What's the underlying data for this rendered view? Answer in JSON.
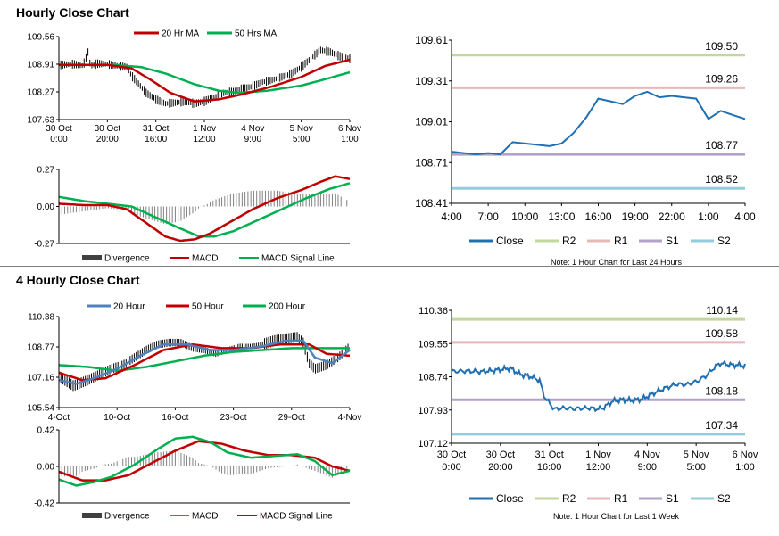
{
  "sections": {
    "hourly_title": "Hourly Close Chart",
    "four_hourly_title": "4 Hourly Close Chart"
  },
  "colors": {
    "ma20": "#c00000",
    "ma50": "#00b050",
    "ma20_4h": "#4f81bd",
    "ma50_4h": "#c00000",
    "ma200_4h": "#00b050",
    "close": "#1f6fb2",
    "r2": "#c3d69b",
    "r1": "#e6b9b8",
    "s1": "#b3a2c7",
    "s2": "#93cddd",
    "divergence": "#808080",
    "price": "#000000"
  },
  "chart_data": [
    {
      "id": "hourly_price",
      "type": "line",
      "title": "",
      "legend": [
        "20 Hr MA",
        "50 Hrs MA"
      ],
      "ylim": [
        107.63,
        109.56
      ],
      "yticks": [
        "109.56",
        "108.91",
        "108.27",
        "107.63"
      ],
      "xticks": [
        {
          "d": "30 Oct",
          "t": "0:00"
        },
        {
          "d": "30 Oct",
          "t": "20:00"
        },
        {
          "d": "31 Oct",
          "t": "16:00"
        },
        {
          "d": "1 Nov",
          "t": "12:00"
        },
        {
          "d": "4 Nov",
          "t": "9:00"
        },
        {
          "d": "5 Nov",
          "t": "5:00"
        },
        {
          "d": "6 Nov",
          "t": "1:00"
        }
      ],
      "x_range": [
        0,
        120
      ],
      "price_anchors": [
        [
          0,
          108.9
        ],
        [
          6,
          108.92
        ],
        [
          10,
          108.88
        ],
        [
          12,
          109.2
        ],
        [
          13,
          108.88
        ],
        [
          16,
          108.93
        ],
        [
          20,
          108.92
        ],
        [
          24,
          108.88
        ],
        [
          28,
          108.85
        ],
        [
          30,
          108.65
        ],
        [
          33,
          108.45
        ],
        [
          36,
          108.25
        ],
        [
          40,
          108.1
        ],
        [
          44,
          108.0
        ],
        [
          48,
          108.02
        ],
        [
          52,
          108.05
        ],
        [
          56,
          108.0
        ],
        [
          60,
          108.05
        ],
        [
          64,
          108.15
        ],
        [
          68,
          108.25
        ],
        [
          72,
          108.28
        ],
        [
          76,
          108.35
        ],
        [
          80,
          108.4
        ],
        [
          84,
          108.5
        ],
        [
          88,
          108.55
        ],
        [
          92,
          108.62
        ],
        [
          96,
          108.7
        ],
        [
          100,
          108.85
        ],
        [
          104,
          109.05
        ],
        [
          108,
          109.25
        ],
        [
          112,
          109.2
        ],
        [
          116,
          109.1
        ],
        [
          120,
          109.05
        ]
      ],
      "series": [
        {
          "name": "20 Hr MA",
          "anchors": [
            [
              0,
              108.9
            ],
            [
              20,
              108.9
            ],
            [
              30,
              108.82
            ],
            [
              38,
              108.55
            ],
            [
              46,
              108.25
            ],
            [
              56,
              108.05
            ],
            [
              66,
              108.1
            ],
            [
              76,
              108.22
            ],
            [
              88,
              108.4
            ],
            [
              100,
              108.62
            ],
            [
              110,
              108.88
            ],
            [
              120,
              109.02
            ]
          ]
        },
        {
          "name": "50 Hrs MA",
          "anchors": [
            [
              0,
              108.9
            ],
            [
              22,
              108.9
            ],
            [
              34,
              108.85
            ],
            [
              44,
              108.7
            ],
            [
              56,
              108.45
            ],
            [
              66,
              108.3
            ],
            [
              74,
              108.25
            ],
            [
              86,
              108.3
            ],
            [
              100,
              108.42
            ],
            [
              110,
              108.57
            ],
            [
              120,
              108.73
            ]
          ]
        }
      ]
    },
    {
      "id": "hourly_macd",
      "type": "line",
      "legend": [
        "Divergence",
        "MACD",
        "MACD Signal Line"
      ],
      "ylim": [
        -0.27,
        0.27
      ],
      "yticks": [
        "0.27",
        "0.00",
        "-0.27"
      ],
      "x_range": [
        0,
        120
      ],
      "series": [
        {
          "name": "MACD",
          "anchors": [
            [
              0,
              0.02
            ],
            [
              10,
              0.01
            ],
            [
              20,
              0.01
            ],
            [
              28,
              -0.02
            ],
            [
              36,
              -0.12
            ],
            [
              44,
              -0.22
            ],
            [
              50,
              -0.25
            ],
            [
              56,
              -0.24
            ],
            [
              62,
              -0.2
            ],
            [
              70,
              -0.12
            ],
            [
              80,
              -0.02
            ],
            [
              90,
              0.06
            ],
            [
              100,
              0.12
            ],
            [
              108,
              0.18
            ],
            [
              114,
              0.22
            ],
            [
              120,
              0.2
            ]
          ]
        },
        {
          "name": "MACD Signal Line",
          "anchors": [
            [
              0,
              0.07
            ],
            [
              10,
              0.04
            ],
            [
              20,
              0.02
            ],
            [
              30,
              0.0
            ],
            [
              40,
              -0.08
            ],
            [
              50,
              -0.16
            ],
            [
              58,
              -0.22
            ],
            [
              64,
              -0.22
            ],
            [
              72,
              -0.18
            ],
            [
              82,
              -0.1
            ],
            [
              92,
              -0.02
            ],
            [
              102,
              0.06
            ],
            [
              112,
              0.13
            ],
            [
              120,
              0.17
            ]
          ]
        }
      ]
    },
    {
      "id": "hourly_pivot",
      "type": "line",
      "ylim": [
        108.41,
        109.61
      ],
      "yticks": [
        "109.61",
        "109.31",
        "109.01",
        "108.71",
        "108.41"
      ],
      "xticks": [
        "4:00",
        "7:00",
        "10:00",
        "13:00",
        "16:00",
        "19:00",
        "22:00",
        "1:00",
        "4:00"
      ],
      "x_range": [
        0,
        24
      ],
      "close": [
        108.79,
        108.78,
        108.77,
        108.78,
        108.77,
        108.86,
        108.85,
        108.84,
        108.83,
        108.85,
        108.93,
        109.04,
        109.18,
        109.16,
        109.14,
        109.2,
        109.23,
        109.19,
        109.2,
        109.19,
        109.18,
        109.03,
        109.09,
        109.06,
        109.03
      ],
      "levels": [
        {
          "name": "R2",
          "value": 109.5,
          "label": "109.50"
        },
        {
          "name": "R1",
          "value": 109.26,
          "label": "109.26"
        },
        {
          "name": "S1",
          "value": 108.77,
          "label": "108.77"
        },
        {
          "name": "S2",
          "value": 108.52,
          "label": "108.52"
        }
      ],
      "legend": [
        "Close",
        "R2",
        "R1",
        "S1",
        "S2"
      ],
      "note": "Note: 1 Hour Chart for Last 24 Hours"
    },
    {
      "id": "four_hourly_price",
      "type": "line",
      "legend": [
        "20 Hour",
        "50 Hour",
        "200 Hour"
      ],
      "ylim": [
        105.54,
        110.38
      ],
      "yticks": [
        "110.38",
        "108.77",
        "107.16",
        "105.54"
      ],
      "xticks": [
        "4-Oct",
        "10-Oct",
        "16-Oct",
        "23-Oct",
        "29-Oct",
        "4-Nov"
      ],
      "x_range": [
        0,
        100
      ],
      "price_anchors": [
        [
          0,
          107.2
        ],
        [
          5,
          106.7
        ],
        [
          10,
          107.0
        ],
        [
          14,
          107.3
        ],
        [
          18,
          107.6
        ],
        [
          22,
          107.8
        ],
        [
          26,
          108.2
        ],
        [
          30,
          108.6
        ],
        [
          34,
          108.9
        ],
        [
          38,
          109.0
        ],
        [
          42,
          109.0
        ],
        [
          46,
          108.7
        ],
        [
          50,
          108.6
        ],
        [
          54,
          108.4
        ],
        [
          58,
          108.6
        ],
        [
          62,
          108.8
        ],
        [
          66,
          108.8
        ],
        [
          70,
          108.9
        ],
        [
          74,
          109.1
        ],
        [
          78,
          109.2
        ],
        [
          82,
          109.3
        ],
        [
          84,
          109.0
        ],
        [
          86,
          107.9
        ],
        [
          88,
          107.6
        ],
        [
          92,
          107.8
        ],
        [
          96,
          108.2
        ],
        [
          100,
          108.8
        ]
      ],
      "series": [
        {
          "name": "20 Hour",
          "anchors": [
            [
              0,
              107.0
            ],
            [
              6,
              106.8
            ],
            [
              12,
              107.1
            ],
            [
              20,
              107.6
            ],
            [
              28,
              108.3
            ],
            [
              36,
              108.9
            ],
            [
              44,
              108.9
            ],
            [
              52,
              108.6
            ],
            [
              60,
              108.6
            ],
            [
              70,
              108.8
            ],
            [
              78,
              109.1
            ],
            [
              84,
              109.1
            ],
            [
              88,
              108.2
            ],
            [
              94,
              107.9
            ],
            [
              100,
              108.6
            ]
          ]
        },
        {
          "name": "50 Hour",
          "anchors": [
            [
              0,
              107.4
            ],
            [
              8,
              107.0
            ],
            [
              16,
              107.1
            ],
            [
              26,
              107.8
            ],
            [
              36,
              108.6
            ],
            [
              46,
              108.9
            ],
            [
              56,
              108.7
            ],
            [
              66,
              108.7
            ],
            [
              76,
              108.9
            ],
            [
              86,
              108.9
            ],
            [
              92,
              108.4
            ],
            [
              100,
              108.3
            ]
          ]
        },
        {
          "name": "200 Hour",
          "anchors": [
            [
              0,
              107.8
            ],
            [
              10,
              107.7
            ],
            [
              20,
              107.5
            ],
            [
              30,
              107.7
            ],
            [
              40,
              108.0
            ],
            [
              50,
              108.3
            ],
            [
              60,
              108.5
            ],
            [
              70,
              108.6
            ],
            [
              80,
              108.7
            ],
            [
              90,
              108.7
            ],
            [
              100,
              108.7
            ]
          ]
        }
      ]
    },
    {
      "id": "four_hourly_macd",
      "type": "line",
      "legend": [
        "Divergence",
        "MACD",
        "MACD Signal Line"
      ],
      "ylim": [
        -0.42,
        0.42
      ],
      "yticks": [
        "0.42",
        "0.00",
        "-0.42"
      ],
      "x_range": [
        0,
        100
      ],
      "series": [
        {
          "name": "MACD",
          "anchors": [
            [
              0,
              -0.15
            ],
            [
              6,
              -0.22
            ],
            [
              12,
              -0.18
            ],
            [
              18,
              -0.12
            ],
            [
              26,
              0.02
            ],
            [
              34,
              0.2
            ],
            [
              40,
              0.32
            ],
            [
              46,
              0.34
            ],
            [
              52,
              0.28
            ],
            [
              58,
              0.16
            ],
            [
              66,
              0.1
            ],
            [
              74,
              0.12
            ],
            [
              82,
              0.14
            ],
            [
              88,
              0.06
            ],
            [
              94,
              -0.1
            ],
            [
              100,
              -0.05
            ]
          ]
        },
        {
          "name": "MACD Signal Line",
          "anchors": [
            [
              0,
              -0.06
            ],
            [
              8,
              -0.16
            ],
            [
              16,
              -0.16
            ],
            [
              24,
              -0.1
            ],
            [
              32,
              0.04
            ],
            [
              40,
              0.18
            ],
            [
              48,
              0.29
            ],
            [
              56,
              0.26
            ],
            [
              64,
              0.18
            ],
            [
              72,
              0.13
            ],
            [
              80,
              0.13
            ],
            [
              88,
              0.1
            ],
            [
              94,
              0.0
            ],
            [
              100,
              -0.05
            ]
          ]
        }
      ]
    },
    {
      "id": "four_hourly_pivot",
      "type": "line",
      "ylim": [
        107.12,
        110.36
      ],
      "yticks": [
        "110.36",
        "109.55",
        "108.74",
        "107.93",
        "107.12"
      ],
      "xticks": [
        {
          "d": "30 Oct",
          "t": "0:00"
        },
        {
          "d": "30 Oct",
          "t": "20:00"
        },
        {
          "d": "31 Oct",
          "t": "16:00"
        },
        {
          "d": "1 Nov",
          "t": "12:00"
        },
        {
          "d": "4 Nov",
          "t": "9:00"
        },
        {
          "d": "5 Nov",
          "t": "5:00"
        },
        {
          "d": "6 Nov",
          "t": "1:00"
        }
      ],
      "x_range": [
        0,
        120
      ],
      "close_anchors": [
        [
          0,
          108.87
        ],
        [
          6,
          108.88
        ],
        [
          12,
          108.86
        ],
        [
          18,
          108.9
        ],
        [
          24,
          108.95
        ],
        [
          28,
          108.8
        ],
        [
          32,
          108.75
        ],
        [
          36,
          108.65
        ],
        [
          38,
          108.25
        ],
        [
          42,
          107.95
        ],
        [
          46,
          107.98
        ],
        [
          50,
          107.96
        ],
        [
          56,
          107.98
        ],
        [
          60,
          107.95
        ],
        [
          62,
          107.98
        ],
        [
          66,
          108.15
        ],
        [
          70,
          108.18
        ],
        [
          74,
          108.16
        ],
        [
          78,
          108.2
        ],
        [
          84,
          108.38
        ],
        [
          88,
          108.48
        ],
        [
          92,
          108.56
        ],
        [
          96,
          108.55
        ],
        [
          100,
          108.62
        ],
        [
          104,
          108.76
        ],
        [
          108,
          109.0
        ],
        [
          110,
          109.07
        ],
        [
          114,
          109.03
        ],
        [
          118,
          109.02
        ],
        [
          120,
          109.0
        ]
      ],
      "levels": [
        {
          "name": "R2",
          "value": 110.14,
          "label": "110.14"
        },
        {
          "name": "R1",
          "value": 109.58,
          "label": "109.58"
        },
        {
          "name": "S1",
          "value": 108.18,
          "label": "108.18"
        },
        {
          "name": "S2",
          "value": 107.34,
          "label": "107.34"
        }
      ],
      "legend": [
        "Close",
        "R2",
        "R1",
        "S1",
        "S2"
      ],
      "note": "Note: 1 Hour Chart for Last 1 Week"
    }
  ]
}
